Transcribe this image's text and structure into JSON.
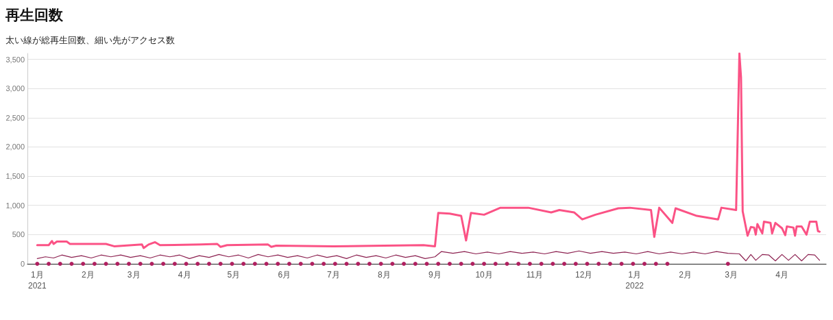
{
  "chart_data": {
    "type": "line",
    "title": "再生回数",
    "subtitle": "太い線が総再生回数、細い先がアクセス数",
    "xlim": [
      "2020-12-26",
      "2022-04-28"
    ],
    "xticks": [
      {
        "value": "2021-01-01",
        "label": "1月\n2021"
      },
      {
        "value": "2021-02-01",
        "label": "2月"
      },
      {
        "value": "2021-03-01",
        "label": "3月"
      },
      {
        "value": "2021-04-01",
        "label": "4月"
      },
      {
        "value": "2021-05-01",
        "label": "5月"
      },
      {
        "value": "2021-06-01",
        "label": "6月"
      },
      {
        "value": "2021-07-01",
        "label": "7月"
      },
      {
        "value": "2021-08-01",
        "label": "8月"
      },
      {
        "value": "2021-09-01",
        "label": "9月"
      },
      {
        "value": "2021-10-01",
        "label": "10月"
      },
      {
        "value": "2021-11-01",
        "label": "11月"
      },
      {
        "value": "2021-12-01",
        "label": "12月"
      },
      {
        "value": "2022-01-01",
        "label": "1月\n2022"
      },
      {
        "value": "2022-02-01",
        "label": "2月"
      },
      {
        "value": "2022-03-01",
        "label": "3月"
      },
      {
        "value": "2022-04-01",
        "label": "4月"
      }
    ],
    "ylim": [
      0,
      3600
    ],
    "yticks": [
      0,
      500,
      {
        "value": 1000,
        "label": "1,000"
      },
      {
        "value": 1500,
        "label": "1,500"
      },
      {
        "value": 2000,
        "label": "2,000"
      },
      {
        "value": 2500,
        "label": "2,500"
      },
      {
        "value": 3000,
        "label": "3,000"
      },
      {
        "value": 3500,
        "label": "3,500"
      }
    ],
    "grid": "y",
    "marker": "none",
    "line_style": "solid",
    "series": [
      {
        "color": "#fb5285",
        "x": [
          "2021-01-01",
          "2021-01-08",
          "2021-01-10",
          "2021-01-11",
          "2021-01-13",
          "2021-01-19",
          "2021-01-21",
          "2021-02-12",
          "2021-02-17",
          "2021-03-06",
          "2021-03-07",
          "2021-03-10",
          "2021-03-14",
          "2021-03-17",
          "2021-04-11",
          "2021-04-21",
          "2021-04-23",
          "2021-04-27",
          "2021-05-22",
          "2021-05-24",
          "2021-05-27",
          "2021-07-01",
          "2021-08-01",
          "2021-08-25",
          "2021-09-01",
          "2021-09-03",
          "2021-09-10",
          "2021-09-17",
          "2021-09-20",
          "2021-09-23",
          "2021-10-01",
          "2021-10-11",
          "2021-10-28",
          "2021-11-11",
          "2021-11-16",
          "2021-11-25",
          "2021-11-30",
          "2021-12-08",
          "2021-12-22",
          "2021-12-29",
          "2022-01-11",
          "2022-01-13",
          "2022-01-16",
          "2022-01-24",
          "2022-01-26",
          "2022-02-08",
          "2022-02-21",
          "2022-02-23",
          "2022-03-04",
          "2022-03-06",
          "2022-03-07",
          "2022-03-08",
          "2022-03-11",
          "2022-03-13",
          "2022-03-15",
          "2022-03-16",
          "2022-03-17",
          "2022-03-20",
          "2022-03-21",
          "2022-03-25",
          "2022-03-26",
          "2022-03-28",
          "2022-04-01",
          "2022-04-03",
          "2022-04-04",
          "2022-04-08",
          "2022-04-09",
          "2022-04-10",
          "2022-04-13",
          "2022-04-16",
          "2022-04-18",
          "2022-04-22",
          "2022-04-23",
          "2022-04-24"
        ],
        "values": [
          320,
          320,
          390,
          340,
          380,
          380,
          340,
          340,
          300,
          330,
          270,
          330,
          370,
          320,
          330,
          340,
          290,
          320,
          330,
          290,
          310,
          300,
          310,
          320,
          300,
          870,
          860,
          820,
          400,
          870,
          840,
          960,
          960,
          880,
          920,
          880,
          760,
          840,
          950,
          960,
          920,
          460,
          960,
          700,
          950,
          820,
          760,
          960,
          920,
          3600,
          3190,
          900,
          480,
          630,
          620,
          500,
          680,
          520,
          720,
          700,
          520,
          700,
          610,
          490,
          640,
          620,
          480,
          640,
          640,
          500,
          720,
          720,
          560,
          550
        ]
      },
      {
        "color": "#8c2150",
        "x": [
          "2021-01-01",
          "2021-01-06",
          "2021-01-11",
          "2021-01-16",
          "2021-01-22",
          "2021-01-28",
          "2021-02-03",
          "2021-02-09",
          "2021-02-15",
          "2021-02-21",
          "2021-02-27",
          "2021-03-05",
          "2021-03-11",
          "2021-03-17",
          "2021-03-23",
          "2021-03-29",
          "2021-04-04",
          "2021-04-10",
          "2021-04-16",
          "2021-04-22",
          "2021-04-28",
          "2021-05-04",
          "2021-05-10",
          "2021-05-16",
          "2021-05-22",
          "2021-05-28",
          "2021-06-03",
          "2021-06-09",
          "2021-06-15",
          "2021-06-21",
          "2021-06-27",
          "2021-07-03",
          "2021-07-09",
          "2021-07-15",
          "2021-07-21",
          "2021-07-27",
          "2021-08-02",
          "2021-08-08",
          "2021-08-14",
          "2021-08-20",
          "2021-08-26",
          "2021-09-01",
          "2021-09-05",
          "2021-09-12",
          "2021-09-19",
          "2021-09-26",
          "2021-10-03",
          "2021-10-10",
          "2021-10-17",
          "2021-10-24",
          "2021-10-31",
          "2021-11-07",
          "2021-11-14",
          "2021-11-21",
          "2021-11-28",
          "2021-12-05",
          "2021-12-12",
          "2021-12-19",
          "2021-12-26",
          "2022-01-02",
          "2022-01-09",
          "2022-01-16",
          "2022-01-23",
          "2022-01-30",
          "2022-02-06",
          "2022-02-13",
          "2022-02-20",
          "2022-02-27",
          "2022-03-06",
          "2022-03-10",
          "2022-03-13",
          "2022-03-16",
          "2022-03-20",
          "2022-03-24",
          "2022-03-28",
          "2022-04-01",
          "2022-04-05",
          "2022-04-09",
          "2022-04-13",
          "2022-04-17",
          "2022-04-21",
          "2022-04-24"
        ],
        "values": [
          90,
          120,
          100,
          150,
          110,
          140,
          100,
          150,
          120,
          150,
          110,
          140,
          100,
          150,
          120,
          150,
          90,
          140,
          110,
          160,
          120,
          150,
          100,
          160,
          120,
          150,
          110,
          140,
          100,
          150,
          110,
          140,
          90,
          150,
          110,
          140,
          100,
          150,
          110,
          140,
          90,
          120,
          210,
          180,
          210,
          170,
          200,
          170,
          210,
          180,
          200,
          170,
          210,
          180,
          220,
          180,
          210,
          180,
          200,
          170,
          210,
          170,
          200,
          170,
          200,
          170,
          210,
          180,
          170,
          50,
          160,
          60,
          160,
          150,
          50,
          160,
          60,
          160,
          50,
          160,
          150,
          60
        ]
      },
      {
        "type": "scatter",
        "marker": "circle",
        "color": "#b02060",
        "x": [
          "2021-01-01",
          "2021-01-08",
          "2021-01-15",
          "2021-01-22",
          "2021-01-29",
          "2021-02-05",
          "2021-02-12",
          "2021-02-19",
          "2021-02-26",
          "2021-03-05",
          "2021-03-12",
          "2021-03-19",
          "2021-03-26",
          "2021-04-02",
          "2021-04-09",
          "2021-04-16",
          "2021-04-23",
          "2021-04-30",
          "2021-05-07",
          "2021-05-14",
          "2021-05-21",
          "2021-05-28",
          "2021-06-04",
          "2021-06-11",
          "2021-06-18",
          "2021-06-25",
          "2021-07-02",
          "2021-07-09",
          "2021-07-16",
          "2021-07-23",
          "2021-07-30",
          "2021-08-06",
          "2021-08-13",
          "2021-08-20",
          "2021-08-27",
          "2021-09-03",
          "2021-09-10",
          "2021-09-17",
          "2021-09-24",
          "2021-10-01",
          "2021-10-08",
          "2021-10-15",
          "2021-10-22",
          "2021-10-29",
          "2021-11-05",
          "2021-11-12",
          "2021-11-19",
          "2021-11-26",
          "2021-12-03",
          "2021-12-10",
          "2021-12-17",
          "2021-12-24",
          "2021-12-31",
          "2022-01-07",
          "2022-01-14",
          "2022-01-21",
          "2022-02-27"
        ],
        "values": [
          0,
          0,
          0,
          0,
          0,
          0,
          0,
          0,
          0,
          0,
          0,
          0,
          0,
          0,
          0,
          0,
          0,
          0,
          0,
          0,
          0,
          0,
          0,
          0,
          0,
          0,
          0,
          0,
          0,
          0,
          0,
          0,
          0,
          0,
          0,
          0,
          0,
          0,
          0,
          0,
          0,
          0,
          0,
          0,
          0,
          0,
          0,
          0,
          0,
          0,
          0,
          0,
          0,
          0,
          0,
          0,
          0
        ]
      }
    ]
  }
}
